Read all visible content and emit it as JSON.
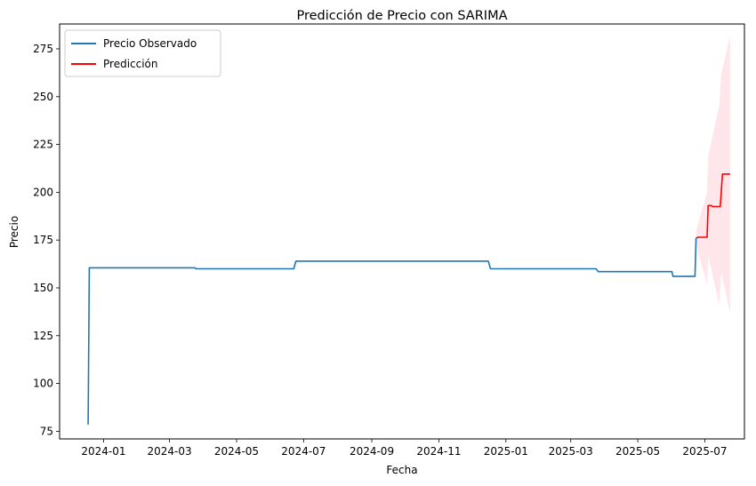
{
  "chart_data": {
    "type": "line",
    "title": "Predicción de Precio con SARIMA",
    "xlabel": "Fecha",
    "ylabel": "Precio",
    "x_ticks": [
      "2024-01",
      "2024-03",
      "2024-05",
      "2024-07",
      "2024-09",
      "2024-11",
      "2025-01",
      "2025-03",
      "2025-05",
      "2025-07"
    ],
    "y_ticks": [
      75,
      100,
      125,
      150,
      175,
      200,
      225,
      250,
      275
    ],
    "ylim": [
      71,
      288
    ],
    "xlim": [
      "2023-11-22",
      "2025-08-06"
    ],
    "grid": false,
    "legend_position": "top-left",
    "series": [
      {
        "name": "Precio Observado",
        "color": "#1f77b4",
        "points": [
          [
            "2023-12-18",
            78.5
          ],
          [
            "2023-12-19",
            160.5
          ],
          [
            "2024-03-24",
            160.5
          ],
          [
            "2024-03-25",
            160.0
          ],
          [
            "2024-06-22",
            160.0
          ],
          [
            "2024-06-24",
            164.0
          ],
          [
            "2024-12-16",
            164.0
          ],
          [
            "2024-12-18",
            160.0
          ],
          [
            "2025-03-24",
            160.0
          ],
          [
            "2025-03-26",
            158.5
          ],
          [
            "2025-06-01",
            158.5
          ],
          [
            "2025-06-02",
            156.0
          ],
          [
            "2025-06-22",
            156.0
          ],
          [
            "2025-06-23",
            176.0
          ]
        ]
      },
      {
        "name": "Predicción",
        "color": "#ff0000",
        "points": [
          [
            "2025-06-23",
            176.0
          ],
          [
            "2025-06-25",
            176.5
          ],
          [
            "2025-07-03",
            176.5
          ],
          [
            "2025-07-04",
            193.0
          ],
          [
            "2025-07-07",
            193.0
          ],
          [
            "2025-07-08",
            192.5
          ],
          [
            "2025-07-15",
            192.5
          ],
          [
            "2025-07-17",
            209.5
          ],
          [
            "2025-07-24",
            209.5
          ]
        ]
      }
    ],
    "confidence_band": {
      "color": "#ffc0cb",
      "opacity": 0.4,
      "upper": [
        [
          "2025-06-23",
          180
        ],
        [
          "2025-06-28",
          190
        ],
        [
          "2025-07-03",
          200
        ],
        [
          "2025-07-04",
          219
        ],
        [
          "2025-07-14",
          245
        ],
        [
          "2025-07-16",
          262
        ],
        [
          "2025-07-24",
          282
        ]
      ],
      "lower": [
        [
          "2025-06-23",
          172
        ],
        [
          "2025-06-28",
          162
        ],
        [
          "2025-07-03",
          152
        ],
        [
          "2025-07-04",
          167
        ],
        [
          "2025-07-14",
          141
        ],
        [
          "2025-07-16",
          158
        ],
        [
          "2025-07-24",
          137
        ]
      ]
    }
  }
}
